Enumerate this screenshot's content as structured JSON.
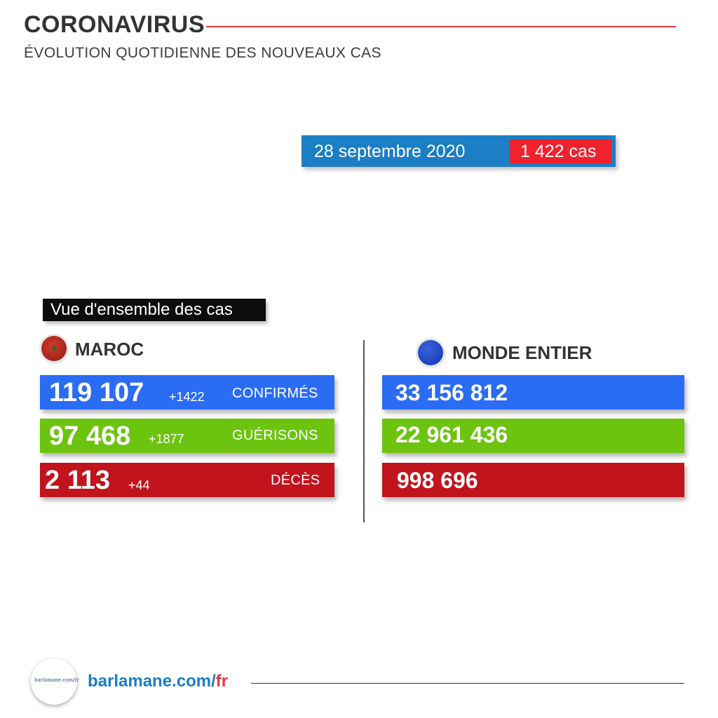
{
  "header": {
    "title": "CORONAVIRUS",
    "subtitle": "ÉVOLUTION QUOTIDIENNE DES NOUVEAUX CAS"
  },
  "daily": {
    "date": "28 septembre 2020",
    "cases": "1 422 cas"
  },
  "overview_label": "Vue d'ensemble des cas",
  "maroc": {
    "label": "MAROC",
    "flag_icon": "morocco-flag-icon",
    "rows": [
      {
        "value": "119 107",
        "delta": "+1422",
        "label": "CONFIRMÉS",
        "color": "#2a6cf4"
      },
      {
        "value": "97 468",
        "delta": "+1877",
        "label": "GUÉRISONS",
        "color": "#6cc40f"
      },
      {
        "value": "2 113",
        "delta": "+44",
        "label": "DÉCÈS",
        "color": "#c1141c"
      }
    ]
  },
  "monde": {
    "label": "MONDE ENTIER",
    "globe_icon": "globe-icon",
    "rows": [
      {
        "value": "33 156 812",
        "color": "#2a6cf4"
      },
      {
        "value": "22 961 436",
        "color": "#6cc40f"
      },
      {
        "value": "998 696",
        "color": "#c1141c"
      }
    ]
  },
  "footer": {
    "logo_text": "barlamane.com/fr",
    "url_main": "barlamane.com/",
    "url_suffix": "fr"
  },
  "colors": {
    "accent_red": "#e23a3f",
    "brand_blue": "#1c7ec4"
  }
}
